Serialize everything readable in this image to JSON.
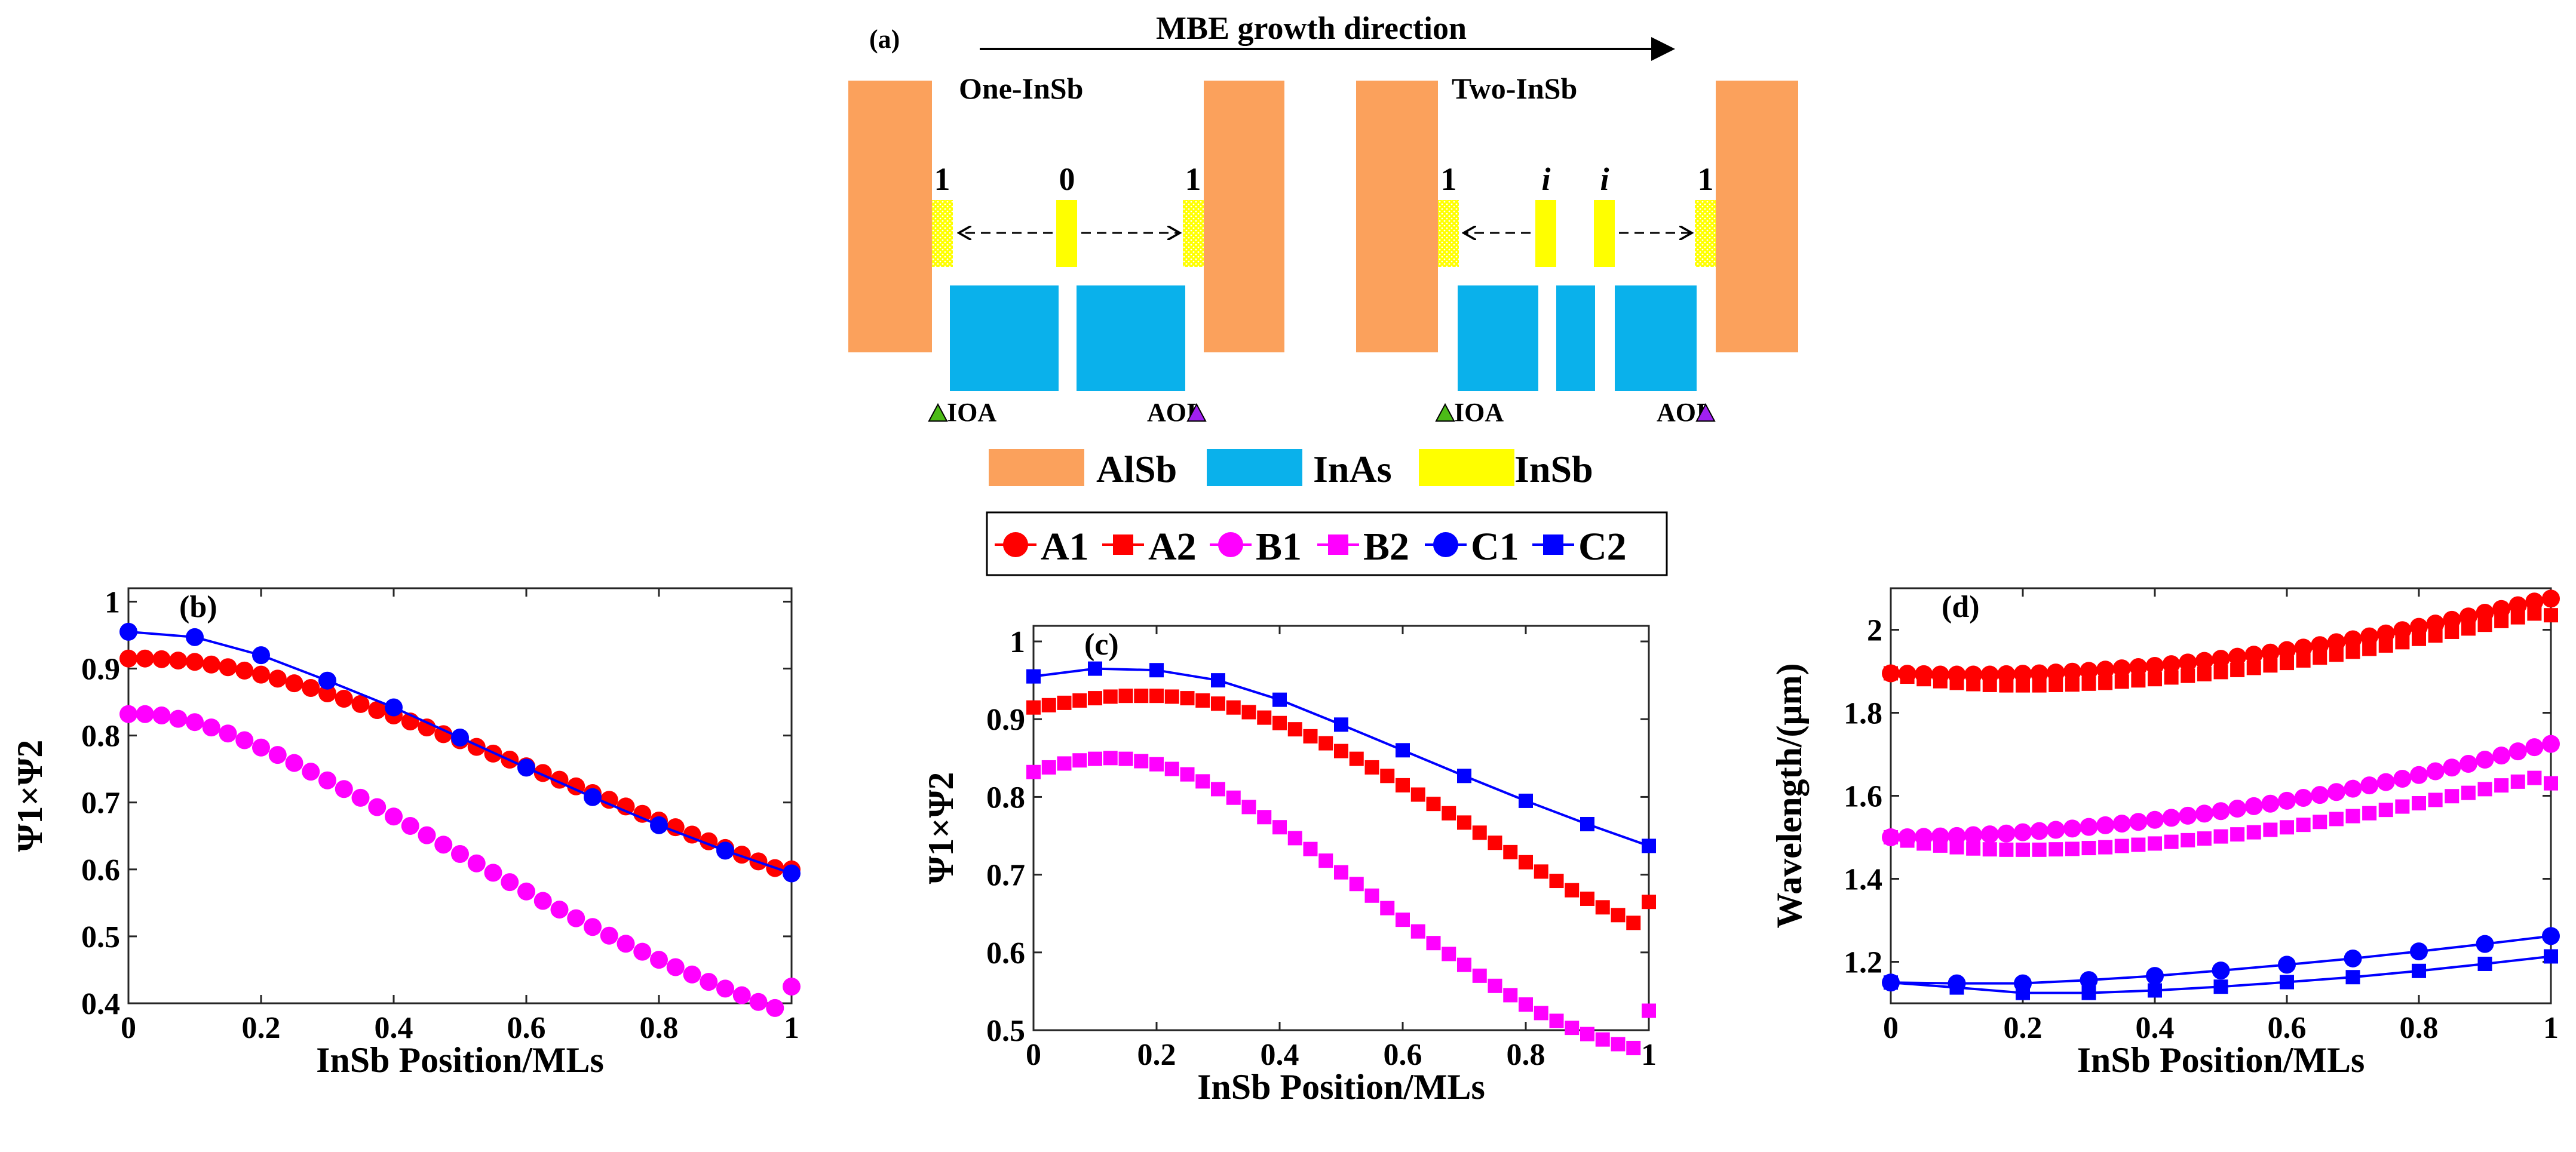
{
  "colors": {
    "alsb": "#FBA15C",
    "inas": "#0AB1EB",
    "insb": "#FFFF00",
    "series_A": "#FF0000",
    "series_B": "#FF00FF",
    "series_C": "#0000FF",
    "ioa_marker": "#4CBB17",
    "aoi_marker": "#A020F0"
  },
  "schematic": {
    "panel_label": "(a)",
    "growth_label": "MBE growth direction",
    "one_title": "One-InSb",
    "two_title": "Two-InSb",
    "one_positions": [
      "1",
      "0",
      "1"
    ],
    "two_positions": [
      "1",
      "i",
      "i",
      "1"
    ],
    "ioa": "IOA",
    "aoi": "AOI",
    "legend": [
      "AlSb",
      "InAs",
      "InSb"
    ]
  },
  "series_legend": [
    "A1",
    "A2",
    "B1",
    "B2",
    "C1",
    "C2"
  ],
  "chart_data": [
    {
      "panel": "(b)",
      "type": "line",
      "xlabel": "InSb Position/MLs",
      "ylabel": "Ψ1×Ψ2",
      "xlim": [
        0,
        1
      ],
      "ylim": [
        0.4,
        1.02
      ],
      "xticks": [
        "0",
        "0.2",
        "0.4",
        "0.6",
        "0.8",
        "1"
      ],
      "yticks": [
        "0.4",
        "0.5",
        "0.6",
        "0.7",
        "0.8",
        "0.9",
        "1"
      ],
      "series": [
        {
          "name": "A1",
          "marker": "circle",
          "color": "#FF0000",
          "line": false,
          "x": [
            0,
            0.025,
            0.05,
            0.075,
            0.1,
            0.125,
            0.15,
            0.175,
            0.2,
            0.225,
            0.25,
            0.275,
            0.3,
            0.325,
            0.35,
            0.375,
            0.4,
            0.425,
            0.45,
            0.475,
            0.5,
            0.525,
            0.55,
            0.575,
            0.6,
            0.625,
            0.65,
            0.675,
            0.7,
            0.725,
            0.75,
            0.775,
            0.8,
            0.825,
            0.85,
            0.875,
            0.9,
            0.925,
            0.95,
            0.975,
            1
          ],
          "values": [
            0.915,
            0.915,
            0.914,
            0.912,
            0.91,
            0.906,
            0.902,
            0.897,
            0.891,
            0.885,
            0.878,
            0.871,
            0.863,
            0.855,
            0.847,
            0.838,
            0.83,
            0.821,
            0.812,
            0.802,
            0.793,
            0.783,
            0.773,
            0.764,
            0.754,
            0.744,
            0.734,
            0.724,
            0.714,
            0.704,
            0.694,
            0.683,
            0.673,
            0.663,
            0.652,
            0.642,
            0.632,
            0.622,
            0.612,
            0.602,
            0.6
          ]
        },
        {
          "name": "B1",
          "marker": "circle",
          "color": "#FF00FF",
          "line": false,
          "x": [
            0,
            0.025,
            0.05,
            0.075,
            0.1,
            0.125,
            0.15,
            0.175,
            0.2,
            0.225,
            0.25,
            0.275,
            0.3,
            0.325,
            0.35,
            0.375,
            0.4,
            0.425,
            0.45,
            0.475,
            0.5,
            0.525,
            0.55,
            0.575,
            0.6,
            0.625,
            0.65,
            0.675,
            0.7,
            0.725,
            0.75,
            0.775,
            0.8,
            0.825,
            0.85,
            0.875,
            0.9,
            0.925,
            0.95,
            0.975,
            1
          ],
          "values": [
            0.832,
            0.832,
            0.83,
            0.825,
            0.82,
            0.812,
            0.803,
            0.793,
            0.782,
            0.771,
            0.759,
            0.746,
            0.733,
            0.72,
            0.707,
            0.693,
            0.679,
            0.665,
            0.651,
            0.637,
            0.623,
            0.609,
            0.595,
            0.581,
            0.567,
            0.553,
            0.54,
            0.527,
            0.514,
            0.501,
            0.489,
            0.477,
            0.465,
            0.454,
            0.443,
            0.432,
            0.422,
            0.412,
            0.402,
            0.393,
            0.425
          ]
        },
        {
          "name": "C1",
          "marker": "circle",
          "color": "#0000FF",
          "line": true,
          "x": [
            0,
            0.1,
            0.2,
            0.3,
            0.4,
            0.5,
            0.6,
            0.7,
            0.8,
            0.9,
            1
          ],
          "values": [
            0.955,
            0.947,
            0.92,
            0.882,
            0.842,
            0.797,
            0.752,
            0.708,
            0.666,
            0.628,
            0.594
          ]
        }
      ]
    },
    {
      "panel": "(c)",
      "type": "line",
      "xlabel": "InSb Position/MLs",
      "ylabel": "Ψ1×Ψ2",
      "xlim": [
        0,
        1
      ],
      "ylim": [
        0.5,
        1.02
      ],
      "xticks": [
        "0",
        "0.2",
        "0.4",
        "0.6",
        "0.8",
        "1"
      ],
      "yticks": [
        "0.5",
        "0.6",
        "0.7",
        "0.8",
        "0.9",
        "1"
      ],
      "series": [
        {
          "name": "A2",
          "marker": "square",
          "color": "#FF0000",
          "line": false,
          "x": [
            0,
            0.025,
            0.05,
            0.075,
            0.1,
            0.125,
            0.15,
            0.175,
            0.2,
            0.225,
            0.25,
            0.275,
            0.3,
            0.325,
            0.35,
            0.375,
            0.4,
            0.425,
            0.45,
            0.475,
            0.5,
            0.525,
            0.55,
            0.575,
            0.6,
            0.625,
            0.65,
            0.675,
            0.7,
            0.725,
            0.75,
            0.775,
            0.8,
            0.825,
            0.85,
            0.875,
            0.9,
            0.925,
            0.95,
            0.975,
            1
          ],
          "values": [
            0.915,
            0.918,
            0.921,
            0.924,
            0.927,
            0.929,
            0.93,
            0.93,
            0.93,
            0.929,
            0.927,
            0.924,
            0.92,
            0.915,
            0.909,
            0.902,
            0.895,
            0.887,
            0.878,
            0.869,
            0.859,
            0.849,
            0.838,
            0.827,
            0.815,
            0.803,
            0.791,
            0.779,
            0.767,
            0.754,
            0.741,
            0.729,
            0.716,
            0.704,
            0.692,
            0.68,
            0.669,
            0.658,
            0.648,
            0.638,
            0.665
          ]
        },
        {
          "name": "B2",
          "marker": "square",
          "color": "#FF00FF",
          "line": false,
          "x": [
            0,
            0.025,
            0.05,
            0.075,
            0.1,
            0.125,
            0.15,
            0.175,
            0.2,
            0.225,
            0.25,
            0.275,
            0.3,
            0.325,
            0.35,
            0.375,
            0.4,
            0.425,
            0.45,
            0.475,
            0.5,
            0.525,
            0.55,
            0.575,
            0.6,
            0.625,
            0.65,
            0.675,
            0.7,
            0.725,
            0.75,
            0.775,
            0.8,
            0.825,
            0.85,
            0.875,
            0.9,
            0.925,
            0.95,
            0.975,
            1
          ],
          "values": [
            0.832,
            0.838,
            0.843,
            0.847,
            0.849,
            0.85,
            0.849,
            0.846,
            0.842,
            0.836,
            0.829,
            0.82,
            0.81,
            0.799,
            0.787,
            0.774,
            0.761,
            0.747,
            0.733,
            0.718,
            0.703,
            0.688,
            0.673,
            0.657,
            0.642,
            0.627,
            0.612,
            0.598,
            0.584,
            0.57,
            0.557,
            0.545,
            0.533,
            0.522,
            0.512,
            0.503,
            0.495,
            0.488,
            0.482,
            0.477,
            0.525
          ]
        },
        {
          "name": "C2",
          "marker": "square",
          "color": "#0000FF",
          "line": true,
          "x": [
            0,
            0.1,
            0.2,
            0.3,
            0.4,
            0.5,
            0.6,
            0.7,
            0.8,
            0.9,
            1
          ],
          "values": [
            0.955,
            0.965,
            0.963,
            0.95,
            0.925,
            0.893,
            0.86,
            0.827,
            0.795,
            0.765,
            0.737
          ]
        }
      ]
    },
    {
      "panel": "(d)",
      "type": "line",
      "xlabel": "InSb Position/MLs",
      "ylabel": "Wavelength/(μm)",
      "xlim": [
        0,
        1
      ],
      "ylim": [
        1.1,
        2.1
      ],
      "xticks": [
        "0",
        "0.2",
        "0.4",
        "0.6",
        "0.8",
        "1"
      ],
      "yticks": [
        "1.2",
        "1.4",
        "1.6",
        "1.8",
        "2"
      ],
      "series": [
        {
          "name": "A1",
          "marker": "circle",
          "color": "#FF0000",
          "line": false,
          "x": [
            0,
            0.025,
            0.05,
            0.075,
            0.1,
            0.125,
            0.15,
            0.175,
            0.2,
            0.225,
            0.25,
            0.275,
            0.3,
            0.325,
            0.35,
            0.375,
            0.4,
            0.425,
            0.45,
            0.475,
            0.5,
            0.525,
            0.55,
            0.575,
            0.6,
            0.625,
            0.65,
            0.675,
            0.7,
            0.725,
            0.75,
            0.775,
            0.8,
            0.825,
            0.85,
            0.875,
            0.9,
            0.925,
            0.95,
            0.975,
            1
          ],
          "values": [
            1.895,
            1.894,
            1.893,
            1.892,
            1.892,
            1.892,
            1.892,
            1.893,
            1.894,
            1.895,
            1.897,
            1.899,
            1.901,
            1.904,
            1.907,
            1.91,
            1.913,
            1.917,
            1.921,
            1.925,
            1.93,
            1.935,
            1.94,
            1.945,
            1.951,
            1.957,
            1.963,
            1.97,
            1.977,
            1.984,
            1.991,
            1.999,
            2.007,
            2.015,
            2.024,
            2.032,
            2.041,
            2.05,
            2.059,
            2.068,
            2.075
          ]
        },
        {
          "name": "A2",
          "marker": "square",
          "color": "#FF0000",
          "line": false,
          "x": [
            0,
            0.025,
            0.05,
            0.075,
            0.1,
            0.125,
            0.15,
            0.175,
            0.2,
            0.225,
            0.25,
            0.275,
            0.3,
            0.325,
            0.35,
            0.375,
            0.4,
            0.425,
            0.45,
            0.475,
            0.5,
            0.525,
            0.55,
            0.575,
            0.6,
            0.625,
            0.65,
            0.675,
            0.7,
            0.725,
            0.75,
            0.775,
            0.8,
            0.825,
            0.85,
            0.875,
            0.9,
            0.925,
            0.95,
            0.975,
            1
          ],
          "values": [
            1.895,
            1.887,
            1.881,
            1.876,
            1.872,
            1.869,
            1.867,
            1.866,
            1.866,
            1.866,
            1.867,
            1.868,
            1.87,
            1.872,
            1.875,
            1.878,
            1.881,
            1.885,
            1.889,
            1.893,
            1.898,
            1.903,
            1.908,
            1.914,
            1.92,
            1.926,
            1.933,
            1.94,
            1.947,
            1.954,
            1.962,
            1.97,
            1.978,
            1.986,
            1.995,
            2.003,
            2.012,
            2.021,
            2.03,
            2.039,
            2.035
          ]
        },
        {
          "name": "B1",
          "marker": "circle",
          "color": "#FF00FF",
          "line": false,
          "x": [
            0,
            0.025,
            0.05,
            0.075,
            0.1,
            0.125,
            0.15,
            0.175,
            0.2,
            0.225,
            0.25,
            0.275,
            0.3,
            0.325,
            0.35,
            0.375,
            0.4,
            0.425,
            0.45,
            0.475,
            0.5,
            0.525,
            0.55,
            0.575,
            0.6,
            0.625,
            0.65,
            0.675,
            0.7,
            0.725,
            0.75,
            0.775,
            0.8,
            0.825,
            0.85,
            0.875,
            0.9,
            0.925,
            0.95,
            0.975,
            1
          ],
          "values": [
            1.5,
            1.5,
            1.501,
            1.502,
            1.503,
            1.505,
            1.507,
            1.509,
            1.512,
            1.515,
            1.518,
            1.521,
            1.525,
            1.529,
            1.533,
            1.537,
            1.542,
            1.547,
            1.552,
            1.557,
            1.563,
            1.569,
            1.575,
            1.581,
            1.588,
            1.595,
            1.602,
            1.609,
            1.617,
            1.625,
            1.633,
            1.641,
            1.65,
            1.659,
            1.668,
            1.677,
            1.687,
            1.697,
            1.707,
            1.717,
            1.725
          ]
        },
        {
          "name": "B2",
          "marker": "square",
          "color": "#FF00FF",
          "line": false,
          "x": [
            0,
            0.025,
            0.05,
            0.075,
            0.1,
            0.125,
            0.15,
            0.175,
            0.2,
            0.225,
            0.25,
            0.275,
            0.3,
            0.325,
            0.35,
            0.375,
            0.4,
            0.425,
            0.45,
            0.475,
            0.5,
            0.525,
            0.55,
            0.575,
            0.6,
            0.625,
            0.65,
            0.675,
            0.7,
            0.725,
            0.75,
            0.775,
            0.8,
            0.825,
            0.85,
            0.875,
            0.9,
            0.925,
            0.95,
            0.975,
            1
          ],
          "values": [
            1.5,
            1.492,
            1.485,
            1.48,
            1.476,
            1.473,
            1.471,
            1.47,
            1.47,
            1.47,
            1.471,
            1.472,
            1.474,
            1.476,
            1.479,
            1.482,
            1.485,
            1.489,
            1.493,
            1.497,
            1.502,
            1.507,
            1.512,
            1.518,
            1.524,
            1.53,
            1.537,
            1.544,
            1.551,
            1.558,
            1.566,
            1.574,
            1.582,
            1.59,
            1.599,
            1.607,
            1.616,
            1.625,
            1.634,
            1.643,
            1.63
          ]
        },
        {
          "name": "C1",
          "marker": "circle",
          "color": "#0000FF",
          "line": true,
          "x": [
            0,
            0.1,
            0.2,
            0.3,
            0.4,
            0.5,
            0.6,
            0.7,
            0.8,
            0.9,
            1
          ],
          "values": [
            1.15,
            1.148,
            1.148,
            1.156,
            1.166,
            1.179,
            1.193,
            1.208,
            1.225,
            1.243,
            1.262
          ]
        },
        {
          "name": "C2",
          "marker": "square",
          "color": "#0000FF",
          "line": true,
          "x": [
            0,
            0.1,
            0.2,
            0.3,
            0.4,
            0.5,
            0.6,
            0.7,
            0.8,
            0.9,
            1
          ],
          "values": [
            1.15,
            1.138,
            1.125,
            1.125,
            1.131,
            1.14,
            1.151,
            1.163,
            1.178,
            1.195,
            1.213
          ]
        }
      ]
    }
  ]
}
